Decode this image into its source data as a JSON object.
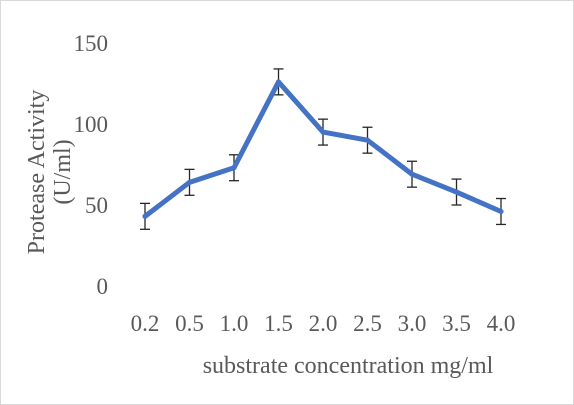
{
  "chart_data": {
    "type": "line",
    "x": [
      "0.2",
      "0.5",
      "1.0",
      "1.5",
      "2.0",
      "2.5",
      "3.0",
      "3.5",
      "4.0"
    ],
    "series": [
      {
        "values": [
          43,
          64,
          73,
          126,
          95,
          90,
          69,
          58,
          46
        ],
        "error": [
          8,
          8,
          8,
          8,
          8,
          8,
          8,
          8,
          8
        ],
        "color": "#4472C4"
      }
    ],
    "yticks": [
      "0",
      "50",
      "100",
      "150"
    ],
    "ylim": [
      0,
      150
    ],
    "xlabel": "substrate concentration mg/ml",
    "ylabel": "Protease Activity",
    "ylabel_line2": "(U/ml)",
    "grid": false,
    "legend": "none"
  }
}
